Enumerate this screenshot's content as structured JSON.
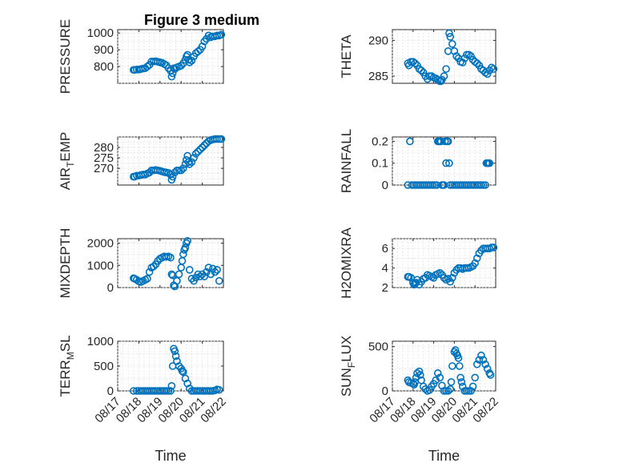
{
  "figure": {
    "title": "Figure 3 medium",
    "marker_color": "#0072bd"
  },
  "chart_data": [
    {
      "type": "scatter",
      "panel": "PRESSURE",
      "ylabel": "PRESSURE",
      "ylim": [
        700,
        1020
      ],
      "yticks": [
        800,
        900,
        1000
      ],
      "xlim": [
        0,
        5
      ],
      "xticks": [
        0,
        1,
        2,
        3,
        4,
        5
      ],
      "xticklabels": [],
      "grid": true,
      "x": [
        0.75,
        0.8,
        0.9,
        1.0,
        1.1,
        1.2,
        1.3,
        1.4,
        1.5,
        1.6,
        1.7,
        1.8,
        1.9,
        2.0,
        2.1,
        2.2,
        2.3,
        2.4,
        2.5,
        2.55,
        2.6,
        2.65,
        2.7,
        2.8,
        2.9,
        3.0,
        3.1,
        3.2,
        3.25,
        3.3,
        3.35,
        3.4,
        3.5,
        3.6,
        3.7,
        3.8,
        3.9,
        4.0,
        4.1,
        4.2,
        4.3,
        4.4,
        4.5,
        4.6,
        4.7,
        4.8,
        4.9
      ],
      "y": [
        780,
        780,
        782,
        782,
        785,
        788,
        790,
        800,
        810,
        830,
        830,
        832,
        828,
        825,
        822,
        815,
        808,
        790,
        775,
        740,
        760,
        790,
        785,
        795,
        800,
        805,
        820,
        840,
        860,
        870,
        840,
        825,
        835,
        860,
        880,
        890,
        900,
        920,
        950,
        965,
        985,
        975,
        980,
        980,
        985,
        985,
        990
      ]
    },
    {
      "type": "scatter",
      "panel": "THETA",
      "ylabel": "THETA",
      "ylim": [
        284,
        291.5
      ],
      "yticks": [
        285,
        290
      ],
      "xlim": [
        0,
        5
      ],
      "xticks": [
        0,
        1,
        2,
        3,
        4,
        5
      ],
      "xticklabels": [],
      "grid": true,
      "x": [
        0.75,
        0.8,
        0.9,
        1.0,
        1.1,
        1.2,
        1.3,
        1.4,
        1.5,
        1.6,
        1.7,
        1.8,
        1.9,
        2.0,
        2.1,
        2.2,
        2.3,
        2.35,
        2.4,
        2.5,
        2.6,
        2.7,
        2.75,
        2.8,
        2.9,
        3.0,
        3.1,
        3.2,
        3.3,
        3.4,
        3.5,
        3.6,
        3.7,
        3.8,
        3.9,
        4.0,
        4.1,
        4.2,
        4.3,
        4.4,
        4.5,
        4.6,
        4.7,
        4.8,
        4.9
      ],
      "y": [
        286.8,
        286.5,
        287.0,
        287.0,
        286.8,
        286.5,
        286.0,
        285.8,
        285.5,
        285.0,
        284.6,
        285.0,
        285.0,
        284.8,
        284.7,
        284.5,
        284.3,
        284.3,
        284.5,
        285.0,
        286.0,
        288.5,
        291.0,
        290.5,
        289.5,
        288.5,
        287.8,
        287.5,
        287.0,
        286.9,
        287.5,
        288.0,
        288.0,
        287.8,
        287.3,
        287.0,
        286.8,
        286.5,
        286.0,
        285.8,
        285.5,
        285.3,
        285.8,
        286.2,
        286.0
      ]
    },
    {
      "type": "scatter",
      "panel": "AIR_TEMP",
      "ylabel": "AIR_TEMP",
      "ylim": [
        262,
        285
      ],
      "yticks": [
        270,
        275,
        280
      ],
      "xlim": [
        0,
        5
      ],
      "xticks": [
        0,
        1,
        2,
        3,
        4,
        5
      ],
      "xticklabels": [],
      "grid": true,
      "x": [
        0.75,
        0.8,
        0.9,
        1.0,
        1.1,
        1.2,
        1.3,
        1.4,
        1.5,
        1.6,
        1.7,
        1.8,
        1.9,
        2.0,
        2.1,
        2.2,
        2.3,
        2.4,
        2.5,
        2.55,
        2.6,
        2.7,
        2.8,
        2.9,
        3.0,
        3.1,
        3.2,
        3.25,
        3.3,
        3.35,
        3.4,
        3.5,
        3.6,
        3.7,
        3.8,
        3.9,
        4.0,
        4.1,
        4.2,
        4.3,
        4.4,
        4.5,
        4.6,
        4.7,
        4.8,
        4.9
      ],
      "y": [
        266,
        266,
        266.5,
        266.5,
        266.8,
        267,
        267,
        267.5,
        268,
        269,
        269,
        269.2,
        269,
        268.8,
        268.5,
        268.2,
        268,
        267.8,
        267,
        264.5,
        266,
        268,
        269,
        269,
        269,
        270,
        272,
        274,
        276,
        273,
        272,
        273,
        275,
        277,
        278,
        279,
        280,
        281,
        282,
        283,
        283.5,
        283.8,
        284,
        284,
        284,
        284
      ]
    },
    {
      "type": "scatter",
      "panel": "RAINFALL",
      "ylabel": "RAINFALL",
      "ylim": [
        0,
        0.22
      ],
      "yticks": [
        0,
        0.1,
        0.2
      ],
      "xlim": [
        0,
        5
      ],
      "xticks": [
        0,
        1,
        2,
        3,
        4,
        5
      ],
      "xticklabels": [],
      "grid": true,
      "x": [
        0.75,
        0.85,
        0.95,
        1.05,
        1.15,
        1.25,
        1.35,
        1.45,
        1.55,
        1.65,
        1.75,
        1.85,
        1.95,
        2.05,
        2.15,
        2.2,
        2.25,
        2.3,
        2.35,
        2.4,
        2.45,
        2.5,
        2.55,
        2.6,
        2.65,
        2.7,
        2.75,
        2.8,
        2.9,
        3.0,
        3.1,
        3.2,
        3.3,
        3.4,
        3.5,
        3.6,
        3.7,
        3.8,
        3.9,
        4.0,
        4.1,
        4.2,
        4.3,
        4.4,
        4.5,
        4.55,
        4.6,
        4.65,
        4.7
      ],
      "y": [
        0,
        0.2,
        0,
        0,
        0,
        0,
        0,
        0,
        0,
        0,
        0,
        0,
        0,
        0,
        0,
        0.2,
        0.2,
        0.2,
        0.2,
        0,
        0,
        0,
        0.2,
        0.1,
        0.2,
        0.2,
        0.1,
        0,
        0,
        0,
        0,
        0,
        0,
        0,
        0,
        0,
        0,
        0,
        0,
        0,
        0,
        0,
        0,
        0,
        0,
        0.1,
        0.1,
        0.1,
        0.1
      ]
    },
    {
      "type": "scatter",
      "panel": "MIXDEPTH",
      "ylabel": "MIXDEPTH",
      "ylim": [
        0,
        2200
      ],
      "yticks": [
        0,
        1000,
        2000
      ],
      "xlim": [
        0,
        5
      ],
      "xticks": [
        0,
        1,
        2,
        3,
        4,
        5
      ],
      "xticklabels": [],
      "grid": true,
      "x": [
        0.75,
        0.8,
        0.9,
        1.0,
        1.1,
        1.2,
        1.3,
        1.4,
        1.5,
        1.6,
        1.7,
        1.8,
        1.9,
        2.0,
        2.1,
        2.2,
        2.3,
        2.4,
        2.5,
        2.55,
        2.6,
        2.65,
        2.7,
        2.8,
        2.9,
        3.0,
        3.05,
        3.1,
        3.15,
        3.2,
        3.25,
        3.3,
        3.4,
        3.5,
        3.6,
        3.7,
        3.8,
        3.9,
        4.0,
        4.1,
        4.2,
        4.3,
        4.4,
        4.5,
        4.6,
        4.7,
        4.8
      ],
      "y": [
        420,
        400,
        350,
        280,
        250,
        300,
        350,
        400,
        700,
        900,
        950,
        1050,
        1200,
        1300,
        1350,
        1400,
        1380,
        1400,
        1350,
        600,
        550,
        100,
        50,
        300,
        600,
        900,
        1200,
        1500,
        1700,
        1800,
        2000,
        2100,
        800,
        400,
        300,
        450,
        600,
        500,
        600,
        500,
        700,
        900,
        600,
        850,
        700,
        800,
        300
      ]
    },
    {
      "type": "scatter",
      "panel": "H2OMIXRA",
      "ylabel": "H2OMIXRA",
      "ylim": [
        2,
        7
      ],
      "yticks": [
        2,
        4,
        6
      ],
      "xlim": [
        0,
        5
      ],
      "xticks": [
        0,
        1,
        2,
        3,
        4,
        5
      ],
      "xticklabels": [],
      "grid": true,
      "x": [
        0.75,
        0.8,
        0.9,
        1.0,
        1.05,
        1.1,
        1.15,
        1.2,
        1.3,
        1.4,
        1.5,
        1.6,
        1.7,
        1.8,
        1.9,
        2.0,
        2.1,
        2.2,
        2.3,
        2.4,
        2.5,
        2.6,
        2.7,
        2.8,
        2.9,
        3.0,
        3.1,
        3.2,
        3.3,
        3.4,
        3.5,
        3.6,
        3.7,
        3.8,
        3.9,
        4.0,
        4.1,
        4.2,
        4.3,
        4.4,
        4.5,
        4.6,
        4.7,
        4.8,
        4.9
      ],
      "y": [
        3.1,
        3.1,
        3.0,
        2.5,
        2.3,
        2.4,
        2.5,
        2.8,
        2.3,
        2.6,
        2.9,
        3.0,
        3.3,
        3.2,
        3.1,
        3.0,
        3.3,
        3.4,
        3.5,
        3.3,
        3.0,
        2.8,
        2.9,
        2.6,
        3.0,
        3.5,
        3.8,
        4.0,
        4.0,
        3.9,
        4.0,
        4.0,
        4.0,
        4.1,
        4.2,
        4.5,
        5.0,
        5.5,
        5.8,
        6.0,
        6.0,
        6.0,
        6.0,
        6.1,
        6.1
      ]
    },
    {
      "type": "scatter",
      "panel": "TERR_MSL",
      "ylabel": "TERR_MSL",
      "ylim": [
        0,
        1000
      ],
      "yticks": [
        0,
        500,
        1000
      ],
      "xlim": [
        0,
        5
      ],
      "xticks": [
        0,
        1,
        2,
        3,
        4,
        5
      ],
      "xticklabels": [
        "08/17",
        "08/18",
        "08/19",
        "08/20",
        "08/21",
        "08/22"
      ],
      "xlabel": "Time",
      "grid": true,
      "x": [
        0.75,
        0.9,
        1.0,
        1.1,
        1.2,
        1.3,
        1.4,
        1.5,
        1.6,
        1.7,
        1.8,
        1.9,
        2.0,
        2.1,
        2.2,
        2.3,
        2.4,
        2.5,
        2.55,
        2.6,
        2.65,
        2.7,
        2.75,
        2.8,
        2.9,
        3.0,
        3.05,
        3.1,
        3.2,
        3.3,
        3.4,
        3.5,
        3.6,
        3.7,
        3.8,
        3.9,
        4.0,
        4.1,
        4.2,
        4.3,
        4.4,
        4.5,
        4.6,
        4.7,
        4.8
      ],
      "y": [
        0,
        0,
        0,
        0,
        0,
        0,
        0,
        0,
        0,
        0,
        0,
        0,
        0,
        0,
        0,
        0,
        0,
        0,
        100,
        500,
        850,
        800,
        700,
        600,
        500,
        450,
        400,
        380,
        250,
        150,
        50,
        0,
        0,
        0,
        0,
        0,
        0,
        0,
        0,
        0,
        0,
        0,
        10,
        30,
        20
      ]
    },
    {
      "type": "scatter",
      "panel": "SUN_FLUX",
      "ylabel": "SUN_FLUX",
      "ylim": [
        0,
        560
      ],
      "yticks": [
        0,
        500
      ],
      "xlim": [
        0,
        5
      ],
      "xticks": [
        0,
        1,
        2,
        3,
        4,
        5
      ],
      "xticklabels": [
        "08/17",
        "08/18",
        "08/19",
        "08/20",
        "08/21",
        "08/22"
      ],
      "xlabel": "Time",
      "grid": true,
      "x": [
        0.75,
        0.8,
        0.9,
        1.0,
        1.05,
        1.1,
        1.15,
        1.2,
        1.3,
        1.35,
        1.4,
        1.5,
        1.6,
        1.7,
        1.8,
        1.9,
        2.0,
        2.1,
        2.2,
        2.3,
        2.4,
        2.5,
        2.6,
        2.7,
        2.8,
        2.85,
        2.9,
        3.0,
        3.05,
        3.1,
        3.15,
        3.2,
        3.25,
        3.3,
        3.35,
        3.4,
        3.5,
        3.6,
        3.7,
        3.8,
        3.9,
        4.0,
        4.1,
        4.2,
        4.3,
        4.4,
        4.5,
        4.6,
        4.7,
        4.75
      ],
      "y": [
        120,
        100,
        90,
        80,
        70,
        100,
        150,
        200,
        220,
        180,
        120,
        50,
        20,
        0,
        10,
        50,
        80,
        120,
        200,
        150,
        60,
        0,
        0,
        0,
        20,
        100,
        280,
        440,
        460,
        420,
        400,
        370,
        280,
        150,
        100,
        50,
        0,
        0,
        0,
        0,
        50,
        150,
        300,
        350,
        400,
        350,
        300,
        250,
        200,
        180
      ]
    }
  ]
}
